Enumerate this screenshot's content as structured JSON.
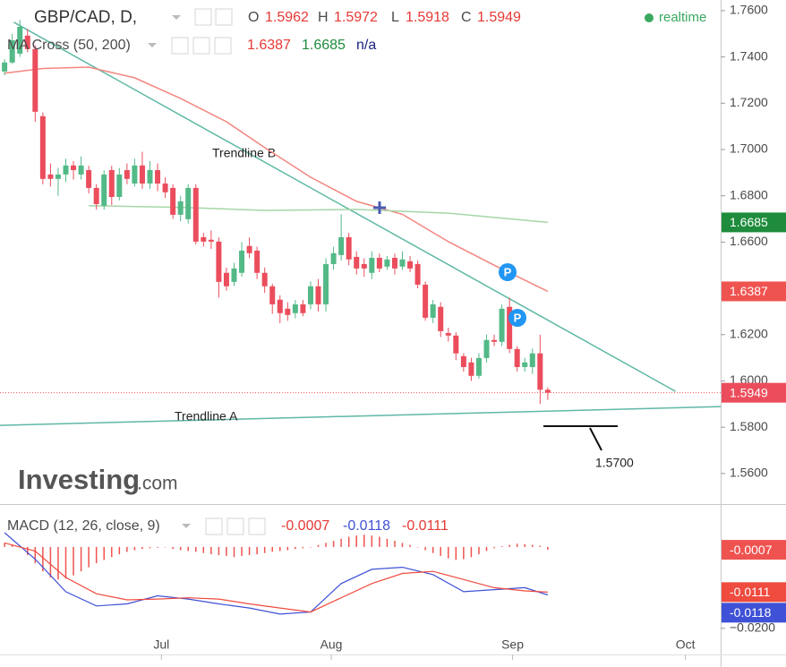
{
  "chart_data": [
    {
      "type": "candlestick",
      "symbol": "GBP/CAD, D,",
      "ohlc_labels": {
        "open": "O",
        "high": "H",
        "low": "L",
        "close": "C"
      },
      "status": "realtime",
      "categories": [
        null,
        null,
        null,
        null,
        null,
        null,
        null,
        null,
        null,
        null,
        null,
        null,
        null,
        null,
        null,
        null,
        null,
        null,
        null,
        null,
        null,
        null,
        null,
        null,
        null,
        null,
        null,
        null,
        null,
        null,
        null,
        null,
        null,
        null,
        null,
        null,
        null,
        null,
        null,
        null,
        null,
        null,
        null,
        null,
        null,
        null,
        null,
        null,
        null,
        null,
        null,
        null,
        null,
        null,
        null,
        null,
        null,
        null,
        null,
        null,
        null,
        null,
        null,
        null,
        null,
        null,
        null,
        null,
        null,
        null,
        null,
        null
      ],
      "series": [
        {
          "up_color": "#53b987",
          "down_color": "#eb4d5c",
          "open": [
            1.7337,
            1.7376,
            1.7414,
            1.7492,
            1.7434,
            1.7144,
            1.6892,
            1.6873,
            1.6892,
            1.6931,
            1.6892,
            1.6911,
            1.6834,
            1.6757,
            1.6911,
            1.6795,
            1.6911,
            1.6853,
            1.6931,
            1.6853,
            1.6911,
            1.6853,
            1.6834,
            1.6718,
            1.6699,
            1.6834,
            1.6621,
            1.661,
            1.6602,
            1.6467,
            1.6428,
            1.6467,
            1.6583,
            1.6563,
            1.6467,
            1.6409,
            1.6351,
            1.6312,
            1.6293,
            1.6331,
            1.6331,
            1.6409,
            1.6331,
            1.6505,
            1.6544,
            1.6621,
            1.6536,
            1.6505,
            1.6467,
            1.6532,
            1.6494,
            1.6532,
            1.6494,
            1.6517,
            1.6505,
            1.6416,
            1.6273,
            1.632,
            1.6207,
            1.6196,
            1.6107,
            1.608,
            1.6022,
            1.6099,
            1.6177,
            1.6169,
            1.632,
            1.6138,
            1.606,
            1.606,
            1.6119,
            1.5962
          ],
          "high": [
            1.739,
            1.75,
            1.756,
            1.752,
            1.745,
            1.716,
            1.694,
            1.692,
            1.696,
            1.695,
            1.697,
            1.693,
            1.685,
            1.691,
            1.693,
            1.692,
            1.694,
            1.696,
            1.699,
            1.695,
            1.694,
            1.688,
            1.685,
            1.68,
            1.685,
            1.685,
            1.664,
            1.665,
            1.662,
            1.649,
            1.651,
            1.66,
            1.662,
            1.658,
            1.649,
            1.642,
            1.637,
            1.634,
            1.635,
            1.635,
            1.643,
            1.644,
            1.653,
            1.658,
            1.672,
            1.664,
            1.656,
            1.653,
            1.656,
            1.655,
            1.654,
            1.655,
            1.656,
            1.654,
            1.652,
            1.643,
            1.635,
            1.634,
            1.623,
            1.621,
            1.612,
            1.61,
            1.612,
            1.62,
            1.62,
            1.633,
            1.636,
            1.615,
            1.61,
            1.614,
            1.62,
            1.5972
          ],
          "low": [
            1.732,
            1.737,
            1.74,
            1.742,
            1.712,
            1.685,
            1.684,
            1.68,
            1.686,
            1.687,
            1.687,
            1.681,
            1.674,
            1.674,
            1.676,
            1.678,
            1.685,
            1.684,
            1.683,
            1.683,
            1.682,
            1.679,
            1.67,
            1.669,
            1.668,
            1.659,
            1.658,
            1.657,
            1.636,
            1.639,
            1.641,
            1.645,
            1.653,
            1.644,
            1.638,
            1.629,
            1.625,
            1.626,
            1.627,
            1.628,
            1.631,
            1.63,
            1.63,
            1.648,
            1.652,
            1.65,
            1.646,
            1.645,
            1.644,
            1.647,
            1.648,
            1.646,
            1.648,
            1.647,
            1.64,
            1.626,
            1.625,
            1.619,
            1.617,
            1.609,
            1.604,
            1.6,
            1.601,
            1.608,
            1.615,
            1.615,
            1.612,
            1.604,
            1.604,
            1.603,
            1.59,
            1.5918
          ],
          "close": [
            1.7376,
            1.7472,
            1.753,
            1.7434,
            1.7163,
            1.6873,
            1.6873,
            1.6892,
            1.6931,
            1.6911,
            1.6931,
            1.6834,
            1.6764,
            1.6892,
            1.6795,
            1.6892,
            1.6873,
            1.6931,
            1.6853,
            1.6911,
            1.6853,
            1.6815,
            1.6718,
            1.6776,
            1.6834,
            1.6602,
            1.6602,
            1.6602,
            1.6428,
            1.6409,
            1.6486,
            1.6563,
            1.6552,
            1.6467,
            1.6409,
            1.6331,
            1.6293,
            1.6285,
            1.6331,
            1.6293,
            1.6409,
            1.6331,
            1.6505,
            1.6552,
            1.6621,
            1.6525,
            1.6486,
            1.6486,
            1.6532,
            1.6486,
            1.6525,
            1.6486,
            1.6525,
            1.6486,
            1.6416,
            1.6273,
            1.6331,
            1.6215,
            1.6196,
            1.6119,
            1.606,
            1.6022,
            1.6099,
            1.6177,
            1.6169,
            1.6312,
            1.6138,
            1.606,
            1.608,
            1.6119,
            1.5962,
            1.5949
          ]
        }
      ],
      "ma": {
        "name": "MA Cross (50, 200)",
        "extra": "n/a",
        "lines": [
          {
            "color": "#f4867f",
            "label_color": "#ef5350",
            "x": [
              0,
              5,
              11,
              17,
              23,
              29,
              34,
              40,
              46,
              52,
              58,
              64,
              71
            ],
            "values": [
              1.733,
              1.735,
              1.7356,
              1.731,
              1.7221,
              1.712,
              1.7008,
              1.688,
              1.6776,
              1.672,
              1.6602,
              1.65,
              1.6387
            ]
          },
          {
            "color": "#a5d6a7",
            "label_color": "#1e8c3c",
            "x": [
              11,
              23,
              34,
              46,
              58,
              71
            ],
            "values": [
              1.6757,
              1.675,
              1.6737,
              1.6741,
              1.6725,
              1.6685
            ]
          }
        ]
      },
      "trendlines": [
        {
          "name": "Trendline B",
          "color": "#5fb8a5",
          "points": [
            [
              1.2,
              1.755
            ],
            [
              87.7,
              1.5955
            ]
          ]
        },
        {
          "name": "Trendline A",
          "color": "#5fb8a5",
          "points": [
            [
              -0.6,
              1.5808
            ],
            [
              93.6,
              1.5889
            ]
          ]
        }
      ],
      "markers": [
        "P",
        "P"
      ],
      "annotation": "1.5700",
      "watermark": {
        "brand": "Investing",
        "suffix": ".com"
      },
      "ylim": [
        1.5468,
        1.7646
      ],
      "yticks": [
        {
          "value": 1.76,
          "label": "1.7600"
        },
        {
          "value": 1.74,
          "label": "1.7400"
        },
        {
          "value": 1.72,
          "label": "1.7200"
        },
        {
          "value": 1.7,
          "label": "1.7000"
        },
        {
          "value": 1.68,
          "label": "1.6800"
        },
        {
          "value": 1.66,
          "label": "1.6600"
        },
        {
          "value": 1.62,
          "label": "1.6200"
        },
        {
          "value": 1.6,
          "label": "1.6000"
        },
        {
          "value": 1.58,
          "label": "1.5800"
        },
        {
          "value": 1.56,
          "label": "1.5600"
        }
      ],
      "xlim": [
        -0.6,
        93.6
      ],
      "xticks": [
        {
          "value": 20.5,
          "label": "Jul"
        },
        {
          "value": 42.7,
          "label": "Aug"
        },
        {
          "value": 66.4,
          "label": "Sep"
        },
        {
          "value": 89.0,
          "label": "Oct"
        }
      ],
      "grid": false
    },
    {
      "type": "macd",
      "title": "MACD (12, 26, close, 9)",
      "histogram": {
        "color": "#ef5350",
        "values": [
          0.001,
          0.0005,
          0.0,
          -0.002,
          -0.004,
          -0.006,
          -0.0075,
          -0.008,
          -0.0078,
          -0.007,
          -0.006,
          -0.005,
          -0.004,
          -0.0032,
          -0.0025,
          -0.0018,
          -0.0012,
          -0.0008,
          -0.0005,
          -0.0003,
          -0.0002,
          -0.0001,
          -0.0005,
          -0.0008,
          -0.001,
          -0.0012,
          -0.0015,
          -0.0018,
          -0.002,
          -0.0022,
          -0.0025,
          -0.0022,
          -0.002,
          -0.0018,
          -0.0015,
          -0.0012,
          -0.001,
          -0.0008,
          -0.0005,
          -0.0003,
          0.0,
          0.0005,
          0.001,
          0.0015,
          0.002,
          0.0025,
          0.0028,
          0.003,
          0.0028,
          0.0025,
          0.002,
          0.0015,
          0.001,
          0.0005,
          0.0,
          -0.0008,
          -0.0015,
          -0.0022,
          -0.0028,
          -0.0032,
          -0.003,
          -0.0025,
          -0.0018,
          -0.001,
          -0.0003,
          0.0002,
          0.0005,
          0.0008,
          0.0007,
          0.0005,
          0.0003,
          -0.0007
        ]
      },
      "series": [
        {
          "color": "#3f51d6",
          "x": [
            0,
            4,
            8,
            12,
            16,
            20,
            24,
            28,
            32,
            36,
            40,
            44,
            48,
            52,
            56,
            60,
            64,
            68,
            71
          ],
          "values": [
            0.0035,
            -0.003,
            -0.011,
            -0.0145,
            -0.014,
            -0.012,
            -0.0128,
            -0.014,
            -0.015,
            -0.0165,
            -0.016,
            -0.009,
            -0.0055,
            -0.005,
            -0.0068,
            -0.011,
            -0.0105,
            -0.01,
            -0.0118
          ]
        },
        {
          "color": "#ef4b3f",
          "x": [
            0,
            4,
            8,
            12,
            16,
            20,
            24,
            28,
            32,
            36,
            40,
            44,
            48,
            52,
            56,
            60,
            64,
            68,
            71
          ],
          "values": [
            0.001,
            -0.001,
            -0.0075,
            -0.0115,
            -0.013,
            -0.0128,
            -0.0125,
            -0.0128,
            -0.014,
            -0.015,
            -0.016,
            -0.0125,
            -0.009,
            -0.0065,
            -0.006,
            -0.008,
            -0.01,
            -0.0108,
            -0.0111
          ]
        }
      ],
      "ylim": [
        -0.0262,
        0.0101
      ],
      "yticks": [
        {
          "value": -0.02,
          "label": "−0.0200"
        }
      ]
    }
  ]
}
